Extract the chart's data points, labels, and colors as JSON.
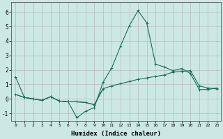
{
  "xlabel": "Humidex (Indice chaleur)",
  "background_color": "#cce8e4",
  "grid_color": "#b0b0b0",
  "line_color": "#1a6b5a",
  "xlim": [
    -0.5,
    23.5
  ],
  "ylim": [
    -1.5,
    6.7
  ],
  "yticks": [
    -1,
    0,
    1,
    2,
    3,
    4,
    5,
    6
  ],
  "xticks": [
    0,
    1,
    2,
    3,
    4,
    5,
    6,
    7,
    8,
    9,
    10,
    11,
    12,
    13,
    14,
    15,
    16,
    17,
    18,
    19,
    20,
    21,
    22,
    23
  ],
  "line1_x": [
    0,
    1,
    2,
    3,
    4,
    5,
    6,
    7,
    8,
    9,
    10,
    11,
    12,
    13,
    14,
    15,
    16,
    17,
    18,
    19,
    20,
    21,
    22,
    23
  ],
  "line1_y": [
    1.5,
    0.1,
    0.0,
    -0.1,
    0.15,
    -0.15,
    -0.2,
    -1.3,
    -0.85,
    -0.6,
    1.15,
    2.15,
    3.65,
    5.05,
    6.1,
    5.25,
    2.4,
    2.2,
    1.95,
    2.1,
    1.75,
    0.65,
    0.65,
    0.75
  ],
  "line2_x": [
    0,
    1,
    2,
    3,
    4,
    5,
    6,
    7,
    8,
    9,
    10,
    11,
    12,
    13,
    14,
    15,
    16,
    17,
    18,
    19,
    20,
    21,
    22,
    23
  ],
  "line2_y": [
    0.3,
    0.1,
    0.0,
    -0.1,
    0.15,
    -0.15,
    -0.2,
    -0.2,
    -0.25,
    -0.4,
    0.7,
    0.9,
    1.05,
    1.2,
    1.35,
    1.45,
    1.55,
    1.65,
    1.85,
    1.9,
    1.95,
    0.9,
    0.75,
    0.7
  ],
  "line3_x": [
    0,
    1,
    2,
    3,
    4,
    5,
    6,
    7,
    8,
    9,
    10
  ],
  "line3_y": [
    0.3,
    0.1,
    0.0,
    -0.1,
    0.15,
    -0.15,
    -0.2,
    -0.2,
    -0.25,
    -0.4,
    0.7
  ],
  "marker": "+"
}
